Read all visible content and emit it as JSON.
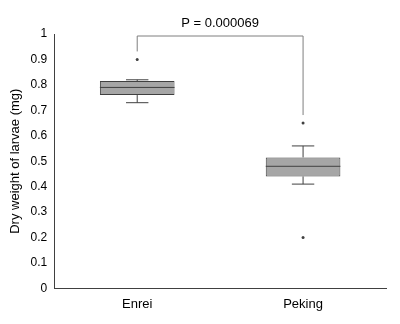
{
  "chart_data": {
    "type": "box",
    "categories": [
      "Enrei",
      "Peking"
    ],
    "boxes": [
      {
        "min": 0.73,
        "q1": 0.76,
        "median": 0.79,
        "q3": 0.815,
        "max": 0.82,
        "outliers": [
          0.9
        ]
      },
      {
        "min": 0.41,
        "q1": 0.44,
        "median": 0.48,
        "q3": 0.515,
        "max": 0.56,
        "outliers": [
          0.65,
          0.2
        ]
      }
    ],
    "y_label": "Dry weight of larvae (mg)",
    "annotation": "P = 0.000069",
    "ylim": [
      0,
      1
    ],
    "yticks": [
      0,
      0.1,
      0.2,
      0.3,
      0.4,
      0.5,
      0.6,
      0.7,
      0.8,
      0.9,
      1
    ],
    "color": "#a6a6a6",
    "grid": false
  }
}
